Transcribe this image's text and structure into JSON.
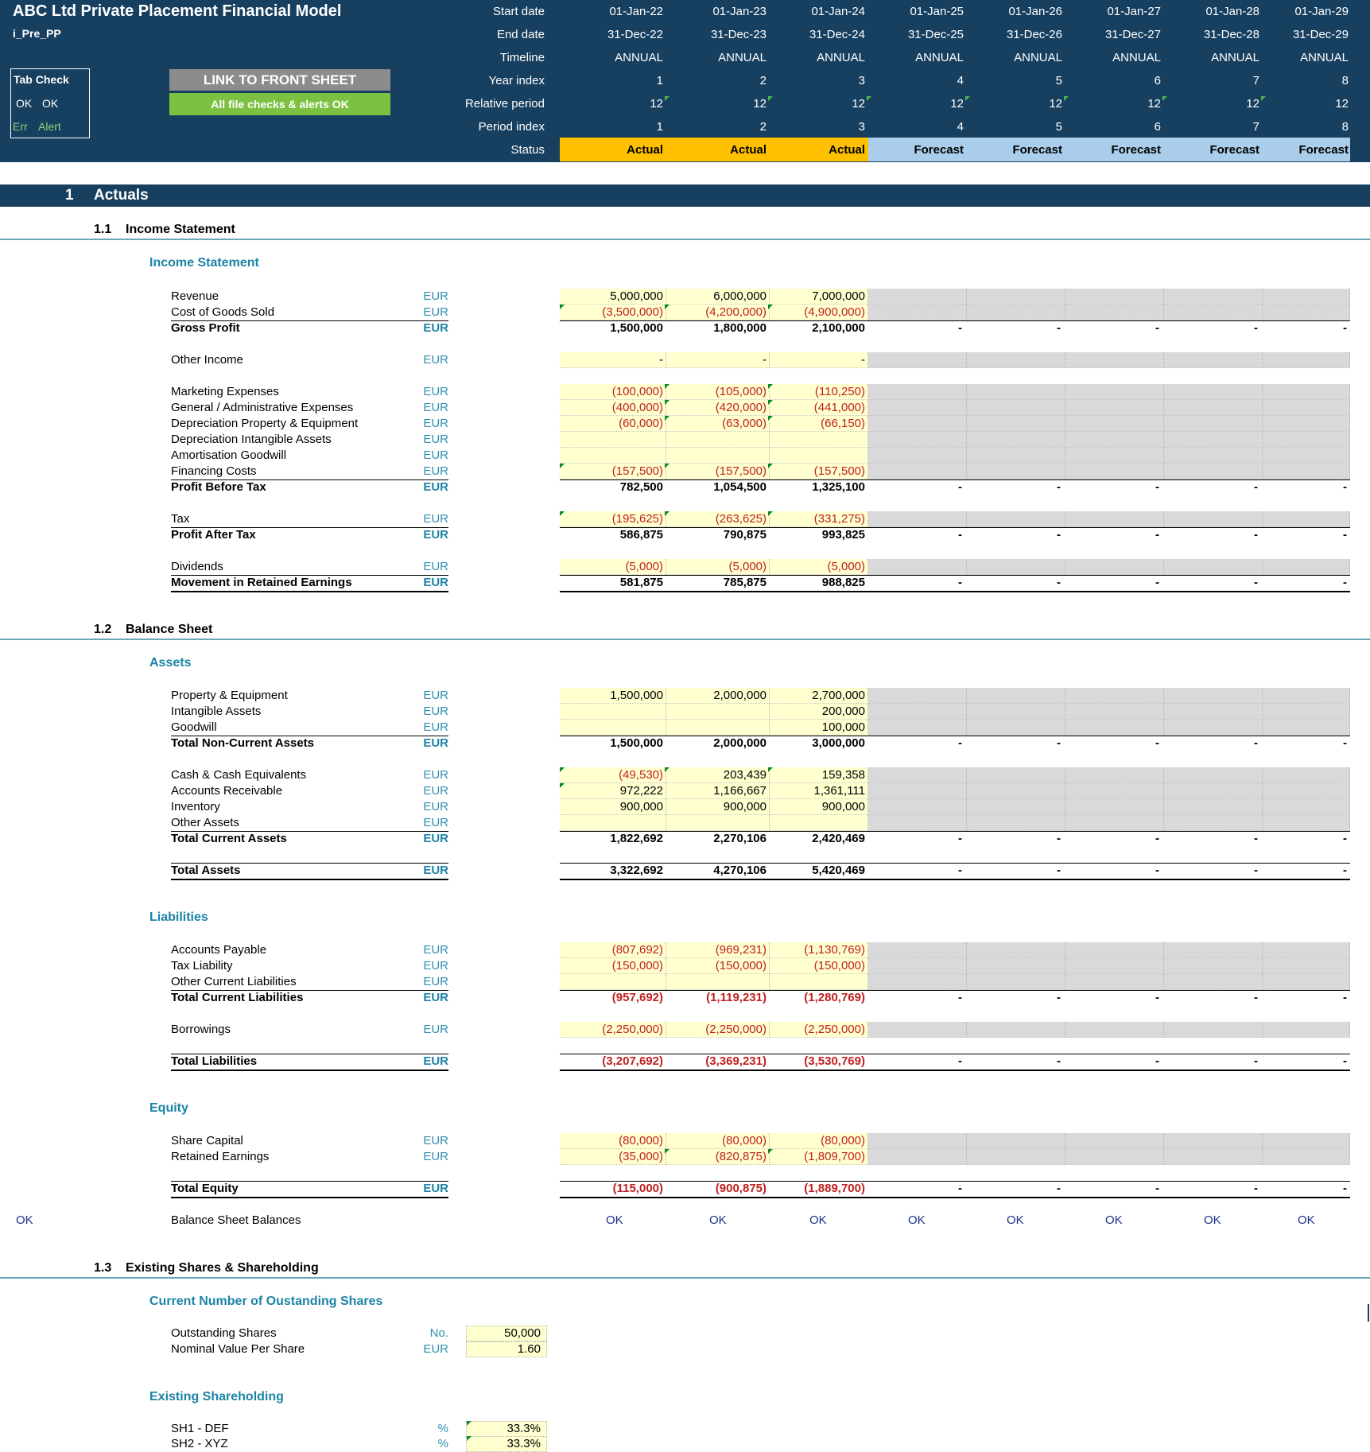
{
  "header": {
    "title": "ABC Ltd Private Placement Financial Model",
    "sheet_code": "i_Pre_PP",
    "tab_check": {
      "title": "Tab Check",
      "ok1": "OK",
      "ok2": "OK",
      "err": "Err",
      "alert": "Alert"
    },
    "link_button": "LINK TO FRONT SHEET",
    "checks_status": "All file checks & alerts OK",
    "row_labels": [
      "Start date",
      "End date",
      "Timeline",
      "Year index",
      "Relative period",
      "Period index",
      "Status"
    ],
    "start_dates": [
      "01-Jan-22",
      "01-Jan-23",
      "01-Jan-24",
      "01-Jan-25",
      "01-Jan-26",
      "01-Jan-27",
      "01-Jan-28",
      "01-Jan-29"
    ],
    "end_dates": [
      "31-Dec-22",
      "31-Dec-23",
      "31-Dec-24",
      "31-Dec-25",
      "31-Dec-26",
      "31-Dec-27",
      "31-Dec-28",
      "31-Dec-29"
    ],
    "timeline": [
      "ANNUAL",
      "ANNUAL",
      "ANNUAL",
      "ANNUAL",
      "ANNUAL",
      "ANNUAL",
      "ANNUAL",
      "ANNUAL"
    ],
    "year_index": [
      "1",
      "2",
      "3",
      "4",
      "5",
      "6",
      "7",
      "8"
    ],
    "relative_period": [
      "12",
      "12",
      "12",
      "12",
      "12",
      "12",
      "12",
      "12"
    ],
    "period_index": [
      "1",
      "2",
      "3",
      "4",
      "5",
      "6",
      "7",
      "8"
    ],
    "status": [
      "Actual",
      "Actual",
      "Actual",
      "Forecast",
      "Forecast",
      "Forecast",
      "Forecast",
      "Forecast"
    ],
    "colors": {
      "header_bg": "#173f5f",
      "actual": "#ffc000",
      "forecast": "#a9cdea",
      "link_btn": "#8c8c8c",
      "status_ok": "#7cc142"
    }
  },
  "section1": {
    "num": "1",
    "title": "Actuals"
  },
  "income": {
    "num": "1.1",
    "title": "Income Statement",
    "subtitle": "Income Statement",
    "rows": [
      {
        "label": "Revenue",
        "unit": "EUR",
        "v": [
          "5,000,000",
          "6,000,000",
          "7,000,000"
        ]
      },
      {
        "label": "Cost of Goods Sold",
        "unit": "EUR",
        "v": [
          "(3,500,000)",
          "(4,200,000)",
          "(4,900,000)"
        ]
      },
      {
        "label": "Gross Profit",
        "unit": "EUR",
        "v": [
          "1,500,000",
          "1,800,000",
          "2,100,000"
        ]
      },
      {
        "label": "Other Income",
        "unit": "EUR",
        "v": [
          "-",
          "-",
          "-"
        ]
      },
      {
        "label": "Marketing Expenses",
        "unit": "EUR",
        "v": [
          "(100,000)",
          "(105,000)",
          "(110,250)"
        ]
      },
      {
        "label": "General / Administrative Expenses",
        "unit": "EUR",
        "v": [
          "(400,000)",
          "(420,000)",
          "(441,000)"
        ]
      },
      {
        "label": "Depreciation Property & Equipment",
        "unit": "EUR",
        "v": [
          "(60,000)",
          "(63,000)",
          "(66,150)"
        ]
      },
      {
        "label": "Depreciation Intangible Assets",
        "unit": "EUR",
        "v": [
          "",
          "",
          ""
        ]
      },
      {
        "label": "Amortisation Goodwill",
        "unit": "EUR",
        "v": [
          "",
          "",
          ""
        ]
      },
      {
        "label": "Financing Costs",
        "unit": "EUR",
        "v": [
          "(157,500)",
          "(157,500)",
          "(157,500)"
        ]
      },
      {
        "label": "Profit Before Tax",
        "unit": "EUR",
        "v": [
          "782,500",
          "1,054,500",
          "1,325,100"
        ]
      },
      {
        "label": "Tax",
        "unit": "EUR",
        "v": [
          "(195,625)",
          "(263,625)",
          "(331,275)"
        ]
      },
      {
        "label": "Profit After Tax",
        "unit": "EUR",
        "v": [
          "586,875",
          "790,875",
          "993,825"
        ]
      },
      {
        "label": "Dividends",
        "unit": "EUR",
        "v": [
          "(5,000)",
          "(5,000)",
          "(5,000)"
        ]
      },
      {
        "label": "Movement in Retained Earnings",
        "unit": "EUR",
        "v": [
          "581,875",
          "785,875",
          "988,825"
        ]
      }
    ]
  },
  "balance": {
    "num": "1.2",
    "title": "Balance Sheet",
    "assets_title": "Assets",
    "liabilities_title": "Liabilities",
    "equity_title": "Equity",
    "rows": [
      {
        "label": "Property & Equipment",
        "unit": "EUR",
        "v": [
          "1,500,000",
          "2,000,000",
          "2,700,000"
        ]
      },
      {
        "label": "Intangible Assets",
        "unit": "EUR",
        "v": [
          "",
          "",
          "200,000"
        ]
      },
      {
        "label": "Goodwill",
        "unit": "EUR",
        "v": [
          "",
          "",
          "100,000"
        ]
      },
      {
        "label": "Total Non-Current Assets",
        "unit": "EUR",
        "v": [
          "1,500,000",
          "2,000,000",
          "3,000,000"
        ]
      },
      {
        "label": "Cash & Cash Equivalents",
        "unit": "EUR",
        "v": [
          "(49,530)",
          "203,439",
          "159,358"
        ]
      },
      {
        "label": "Accounts Receivable",
        "unit": "EUR",
        "v": [
          "972,222",
          "1,166,667",
          "1,361,111"
        ]
      },
      {
        "label": "Inventory",
        "unit": "EUR",
        "v": [
          "900,000",
          "900,000",
          "900,000"
        ]
      },
      {
        "label": "Other Assets",
        "unit": "EUR",
        "v": [
          "",
          "",
          ""
        ]
      },
      {
        "label": "Total Current Assets",
        "unit": "EUR",
        "v": [
          "1,822,692",
          "2,270,106",
          "2,420,469"
        ]
      },
      {
        "label": "Total Assets",
        "unit": "EUR",
        "v": [
          "3,322,692",
          "4,270,106",
          "5,420,469"
        ]
      },
      {
        "label": "Accounts Payable",
        "unit": "EUR",
        "v": [
          "(807,692)",
          "(969,231)",
          "(1,130,769)"
        ]
      },
      {
        "label": "Tax Liability",
        "unit": "EUR",
        "v": [
          "(150,000)",
          "(150,000)",
          "(150,000)"
        ]
      },
      {
        "label": "Other Current Liabilities",
        "unit": "EUR",
        "v": [
          "",
          "",
          ""
        ]
      },
      {
        "label": "Total Current Liabilities",
        "unit": "EUR",
        "v": [
          "(957,692)",
          "(1,119,231)",
          "(1,280,769)"
        ]
      },
      {
        "label": "Borrowings",
        "unit": "EUR",
        "v": [
          "(2,250,000)",
          "(2,250,000)",
          "(2,250,000)"
        ]
      },
      {
        "label": "Total Liabilities",
        "unit": "EUR",
        "v": [
          "(3,207,692)",
          "(3,369,231)",
          "(3,530,769)"
        ]
      },
      {
        "label": "Share Capital",
        "unit": "EUR",
        "v": [
          "(80,000)",
          "(80,000)",
          "(80,000)"
        ]
      },
      {
        "label": "Retained Earnings",
        "unit": "EUR",
        "v": [
          "(35,000)",
          "(820,875)",
          "(1,809,700)"
        ]
      },
      {
        "label": "Total Equity",
        "unit": "EUR",
        "v": [
          "(115,000)",
          "(900,875)",
          "(1,889,700)"
        ]
      }
    ],
    "check_label": "Balance Sheet Balances",
    "check_left": "OK",
    "checks": [
      "OK",
      "OK",
      "OK",
      "OK",
      "OK",
      "OK",
      "OK",
      "OK"
    ],
    "forecast_dash": "-"
  },
  "shares": {
    "num": "1.3",
    "title": "Existing Shares & Shareholding",
    "outstanding_title": "Current Number of Oustanding Shares",
    "outstanding": [
      {
        "label": "Outstanding Shares",
        "unit": "No.",
        "value": "50,000"
      },
      {
        "label": "Nominal Value Per Share",
        "unit": "EUR",
        "value": "1.60"
      }
    ],
    "holding_title": "Existing Shareholding",
    "holdings": [
      {
        "label": "SH1 - DEF",
        "unit": "%",
        "value": "33.3%"
      },
      {
        "label": "SH2 - XYZ",
        "unit": "%",
        "value": "33.3%"
      }
    ]
  }
}
